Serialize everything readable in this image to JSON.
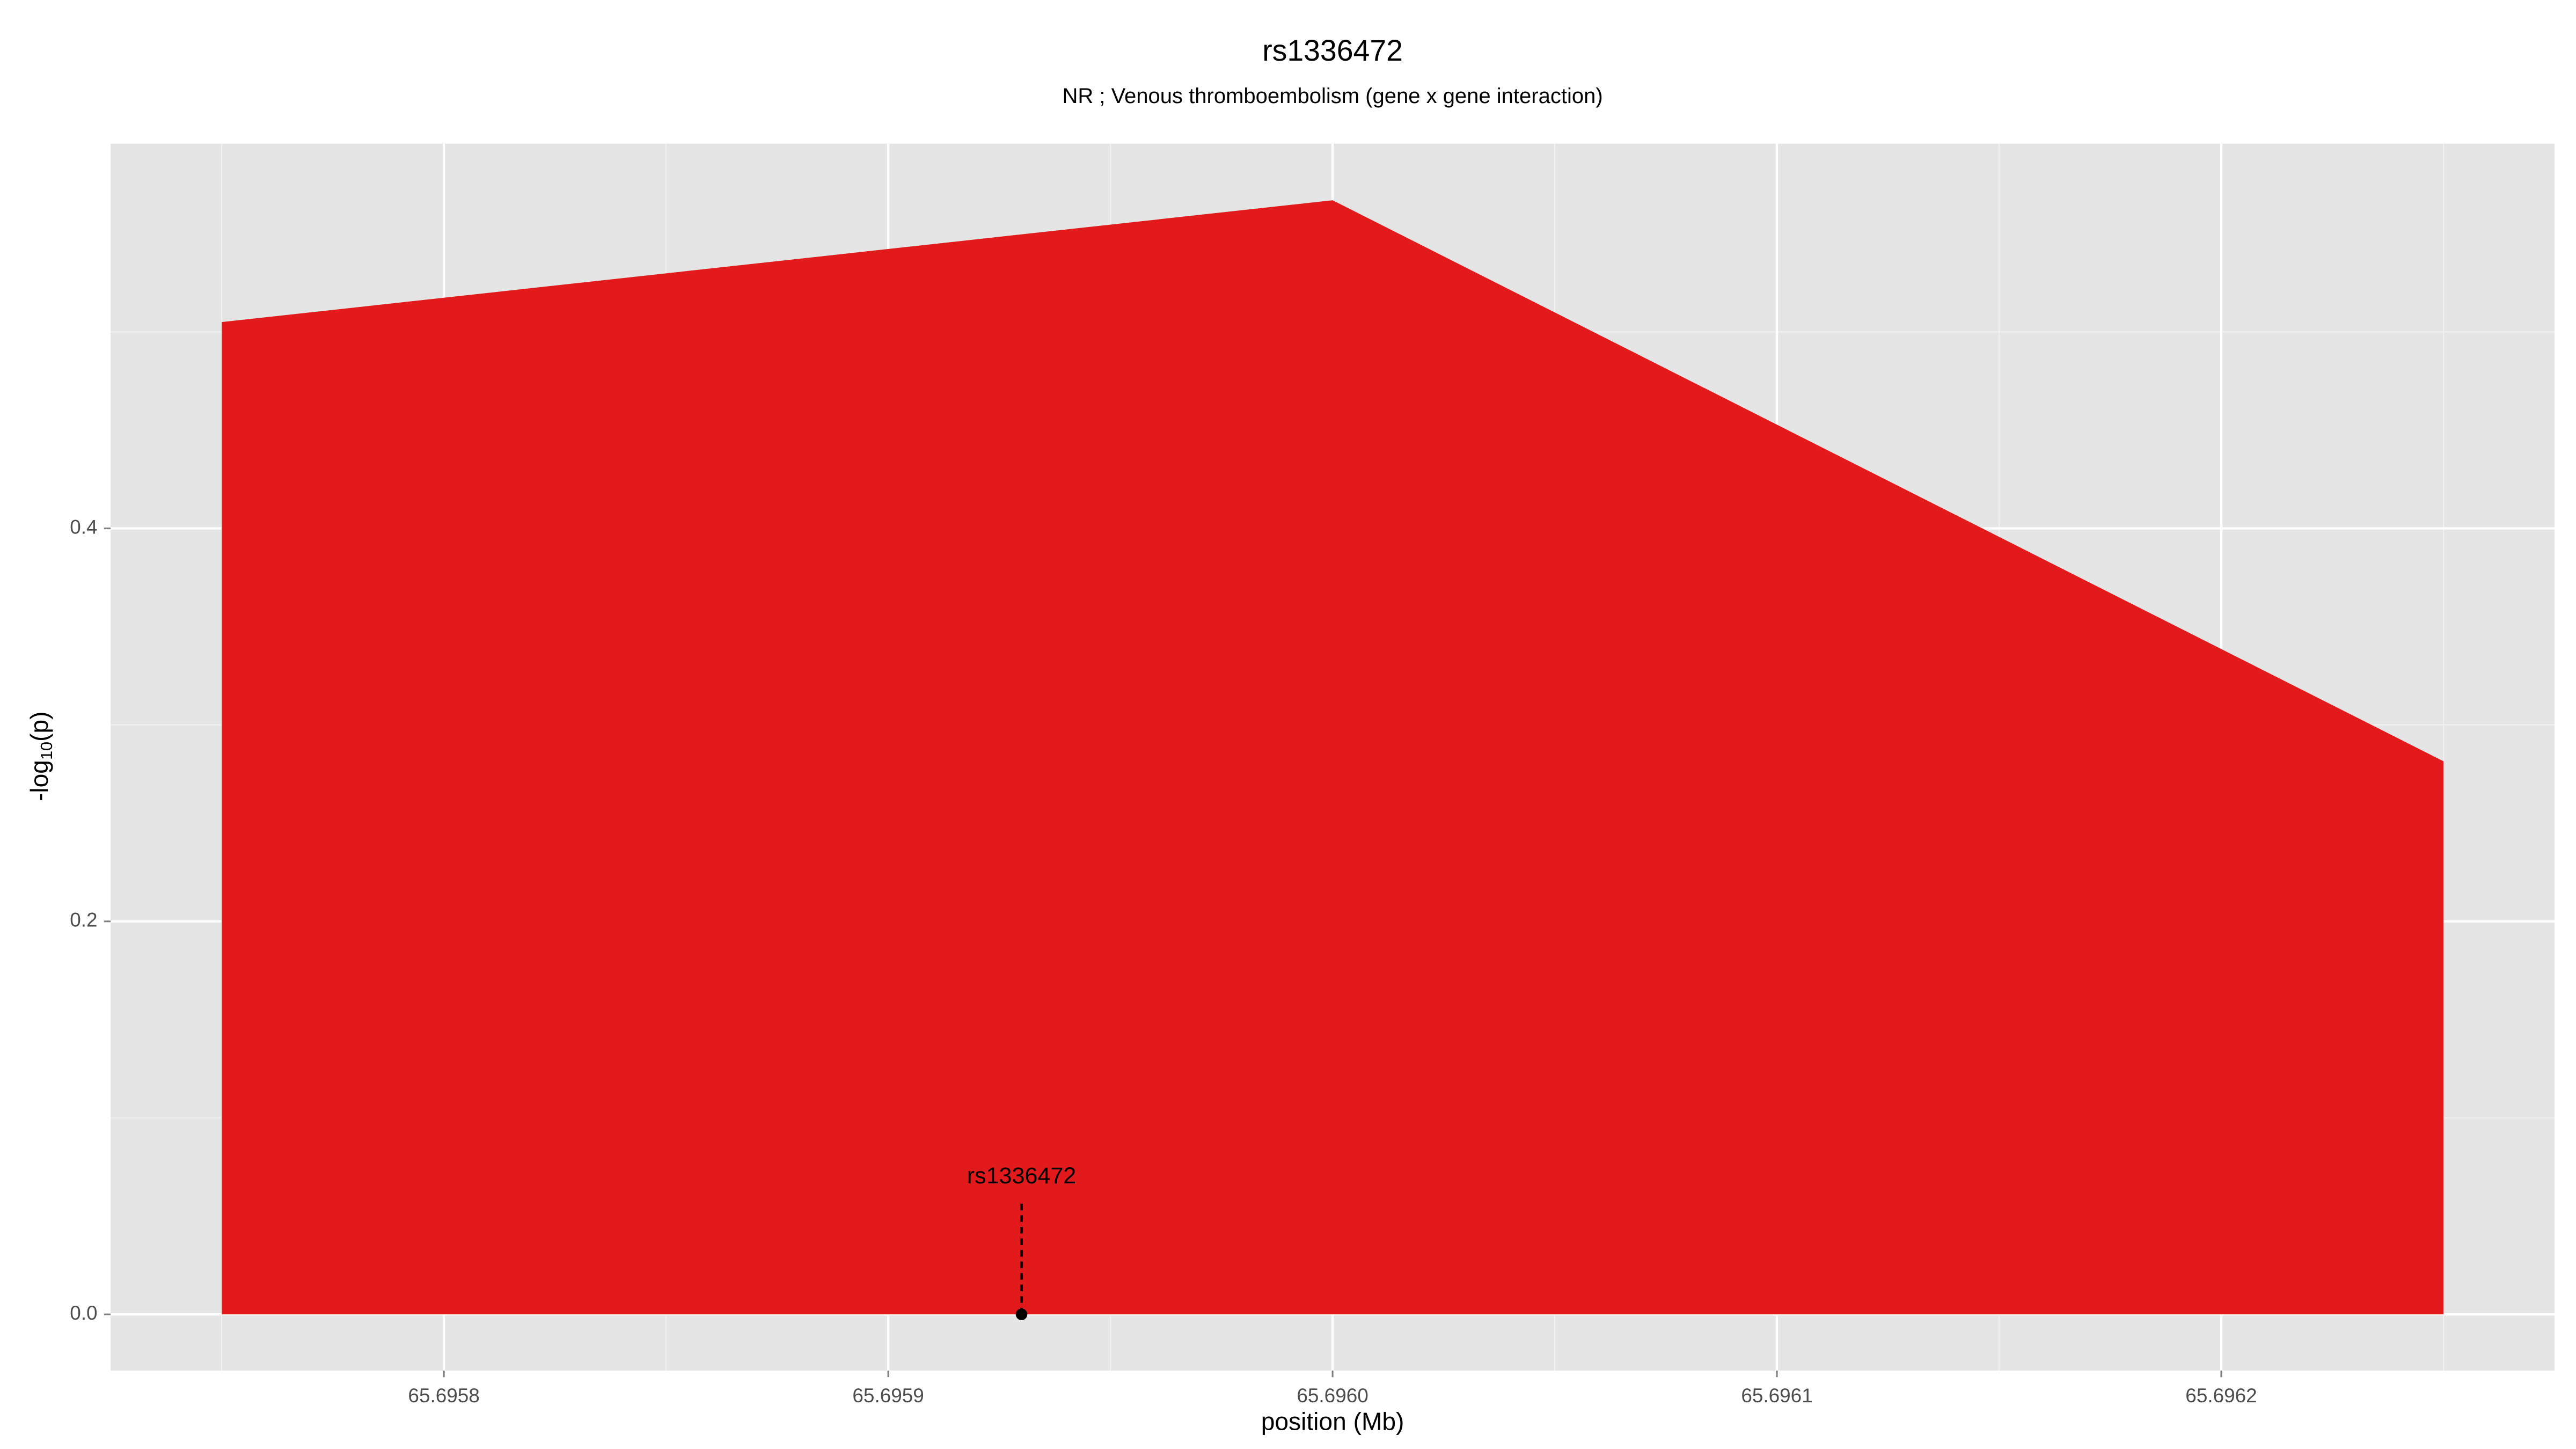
{
  "chart_data": {
    "type": "area",
    "title": "rs1336472",
    "subtitle": "NR ; Venous thromboembolism (gene x gene interaction)",
    "x_label": "position (Mb)",
    "y_label": {
      "prefix": "-log",
      "sub": "10",
      "suffix": "(p)"
    },
    "x": [
      65.69575,
      65.696,
      65.69625
    ],
    "values": [
      0.505,
      0.567,
      0.2815
    ],
    "color": "#e31a1c",
    "xlim": [
      65.695725,
      65.696275
    ],
    "ylim": [
      -0.0286,
      0.5958
    ],
    "xticks": [
      65.6958,
      65.6959,
      {
        "value": 65.696,
        "label": "65.6960"
      },
      65.6961,
      65.6962
    ],
    "yticks": [
      {
        "value": 0,
        "label": "0.0"
      },
      0.2,
      0.4
    ],
    "grid": true,
    "annotation": {
      "label": "rs1336472",
      "x": 65.69593,
      "y": 0
    }
  }
}
